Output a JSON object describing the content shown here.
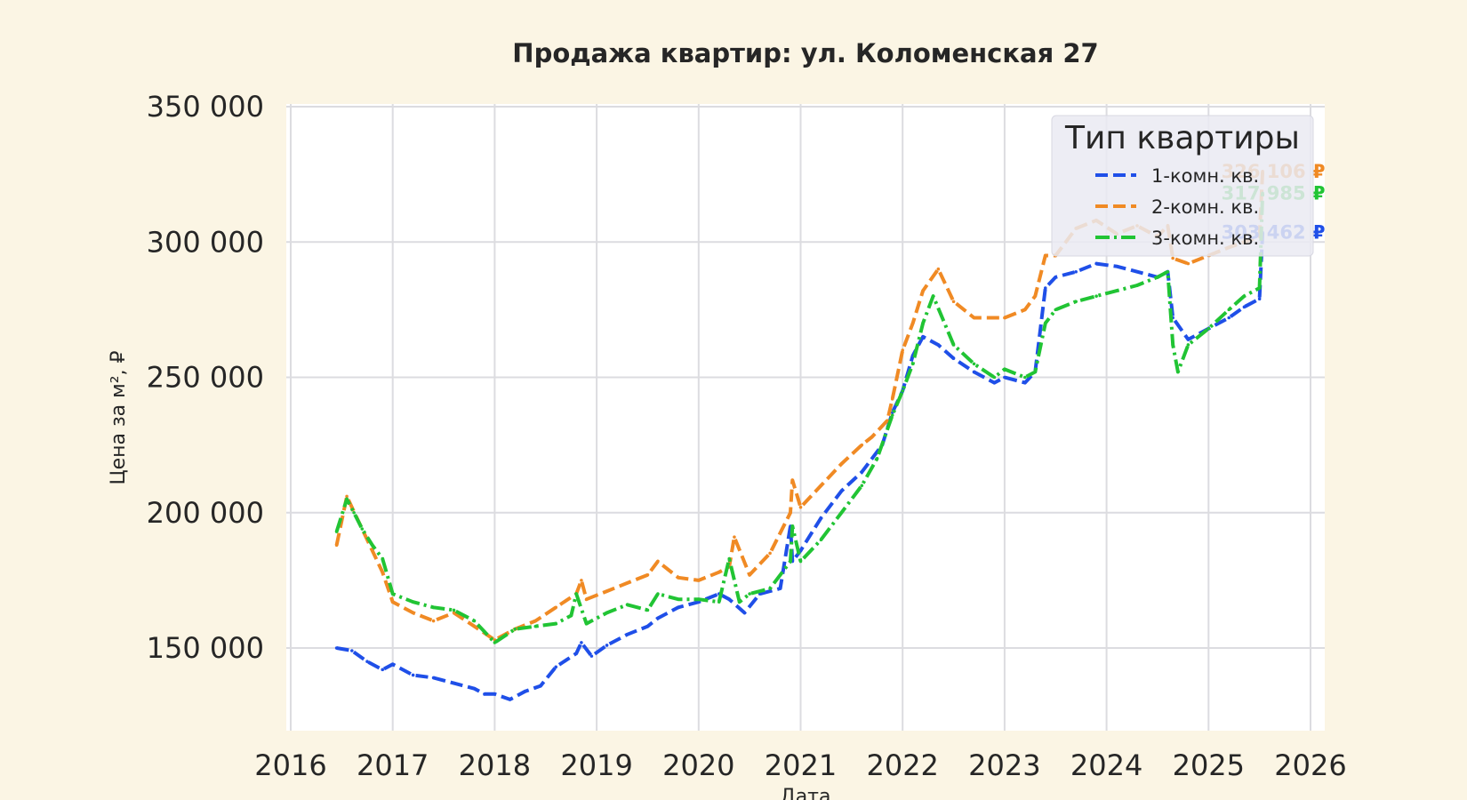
{
  "chart_data": {
    "type": "line",
    "title": "Продажа квартир: ул. Коломенская 27",
    "xlabel": "Дата",
    "ylabel": "Цена за м², ₽",
    "xlim": [
      2016,
      2026
    ],
    "ylim": [
      120000,
      350000
    ],
    "xticks": [
      "2016",
      "2017",
      "2018",
      "2019",
      "2020",
      "2021",
      "2022",
      "2023",
      "2024",
      "2025",
      "2026"
    ],
    "yticks": [
      {
        "value": 150000,
        "label": "150 000"
      },
      {
        "value": 200000,
        "label": "200 000"
      },
      {
        "value": 250000,
        "label": "250 000"
      },
      {
        "value": 300000,
        "label": "300 000"
      },
      {
        "value": 350000,
        "label": "350 000"
      }
    ],
    "grid": true,
    "legend": {
      "title": "Тип квартиры",
      "placement": "top-right"
    },
    "series": [
      {
        "name": "1-комн. кв.",
        "color": "#1f4fe8",
        "style": "dashed",
        "end_label": "303 462 ₽",
        "x": [
          2016.45,
          2016.6,
          2016.75,
          2016.9,
          2017.0,
          2017.2,
          2017.4,
          2017.6,
          2017.8,
          2017.9,
          2018.0,
          2018.15,
          2018.3,
          2018.45,
          2018.6,
          2018.8,
          2018.85,
          2018.95,
          2019.1,
          2019.3,
          2019.5,
          2019.6,
          2019.8,
          2020.0,
          2020.2,
          2020.3,
          2020.45,
          2020.6,
          2020.8,
          2020.9,
          2020.92,
          2021.0,
          2021.2,
          2021.4,
          2021.6,
          2021.8,
          2021.9,
          2022.0,
          2022.1,
          2022.2,
          2022.35,
          2022.5,
          2022.7,
          2022.9,
          2023.0,
          2023.2,
          2023.3,
          2023.4,
          2023.5,
          2023.7,
          2023.9,
          2024.1,
          2024.3,
          2024.5,
          2024.6,
          2024.65,
          2024.8,
          2025.0,
          2025.2,
          2025.35,
          2025.5,
          2025.53
        ],
        "y": [
          150000,
          149000,
          145000,
          142000,
          144000,
          140000,
          139000,
          137000,
          135000,
          133000,
          133000,
          131000,
          134000,
          136000,
          143000,
          148000,
          152000,
          147000,
          151000,
          155000,
          158000,
          161000,
          165000,
          167000,
          170000,
          168000,
          163000,
          170000,
          172000,
          195000,
          182000,
          186000,
          198000,
          208000,
          215000,
          225000,
          237000,
          245000,
          258000,
          265000,
          262000,
          257000,
          252000,
          248000,
          250000,
          248000,
          252000,
          283000,
          287000,
          289000,
          292000,
          291000,
          289000,
          287000,
          289000,
          272000,
          264000,
          268000,
          272000,
          276000,
          279000,
          303462
        ]
      },
      {
        "name": "2-комн. кв.",
        "color": "#f08a24",
        "style": "dashed",
        "end_label": "326 106 ₽",
        "x": [
          2016.45,
          2016.55,
          2016.6,
          2016.75,
          2016.9,
          2017.0,
          2017.2,
          2017.4,
          2017.6,
          2017.8,
          2018.0,
          2018.2,
          2018.4,
          2018.6,
          2018.8,
          2018.85,
          2018.9,
          2019.1,
          2019.3,
          2019.5,
          2019.6,
          2019.8,
          2020.0,
          2020.2,
          2020.3,
          2020.35,
          2020.5,
          2020.7,
          2020.9,
          2020.92,
          2021.0,
          2021.2,
          2021.4,
          2021.6,
          2021.7,
          2021.85,
          2021.9,
          2022.0,
          2022.1,
          2022.2,
          2022.35,
          2022.5,
          2022.7,
          2022.9,
          2023.0,
          2023.2,
          2023.3,
          2023.4,
          2023.5,
          2023.7,
          2023.9,
          2024.1,
          2024.3,
          2024.5,
          2024.6,
          2024.65,
          2024.8,
          2025.0,
          2025.2,
          2025.35,
          2025.5,
          2025.53
        ],
        "y": [
          188000,
          206000,
          202000,
          190000,
          178000,
          167000,
          163000,
          160000,
          163000,
          158000,
          153000,
          157000,
          160000,
          165000,
          170000,
          175000,
          168000,
          171000,
          174000,
          177000,
          182000,
          176000,
          175000,
          178000,
          180000,
          191000,
          177000,
          185000,
          200000,
          212000,
          202000,
          210000,
          218000,
          225000,
          228000,
          234000,
          242000,
          260000,
          270000,
          282000,
          290000,
          278000,
          272000,
          272000,
          272000,
          275000,
          280000,
          295000,
          295000,
          305000,
          308000,
          303000,
          306000,
          302000,
          306000,
          294000,
          292000,
          295000,
          298000,
          300000,
          302000,
          326106
        ]
      },
      {
        "name": "3-комн. кв.",
        "color": "#21c434",
        "style": "dashdot",
        "end_label": "317 985 ₽",
        "x": [
          2016.45,
          2016.55,
          2016.62,
          2016.7,
          2016.8,
          2016.9,
          2017.0,
          2017.2,
          2017.4,
          2017.6,
          2017.8,
          2018.0,
          2018.2,
          2018.4,
          2018.6,
          2018.75,
          2018.8,
          2018.9,
          2019.1,
          2019.3,
          2019.5,
          2019.6,
          2019.8,
          2020.0,
          2020.2,
          2020.3,
          2020.4,
          2020.5,
          2020.7,
          2020.9,
          2020.92,
          2021.0,
          2021.2,
          2021.4,
          2021.6,
          2021.75,
          2021.9,
          2022.0,
          2022.1,
          2022.2,
          2022.3,
          2022.5,
          2022.7,
          2022.9,
          2023.0,
          2023.2,
          2023.3,
          2023.4,
          2023.5,
          2023.7,
          2023.9,
          2024.1,
          2024.3,
          2024.5,
          2024.6,
          2024.65,
          2024.7,
          2024.8,
          2025.0,
          2025.2,
          2025.35,
          2025.5,
          2025.53
        ],
        "y": [
          193000,
          205000,
          200000,
          194000,
          188000,
          183000,
          170000,
          167000,
          165000,
          164000,
          160000,
          152000,
          157000,
          158000,
          159000,
          162000,
          170000,
          159000,
          163000,
          166000,
          164000,
          170000,
          168000,
          168000,
          167000,
          183000,
          167000,
          170000,
          172000,
          182000,
          195000,
          182000,
          190000,
          200000,
          210000,
          220000,
          236000,
          245000,
          255000,
          270000,
          280000,
          262000,
          255000,
          250000,
          253000,
          250000,
          252000,
          270000,
          275000,
          278000,
          280000,
          282000,
          284000,
          287000,
          289000,
          262000,
          252000,
          262000,
          268000,
          275000,
          280000,
          283000,
          317985
        ]
      }
    ]
  }
}
